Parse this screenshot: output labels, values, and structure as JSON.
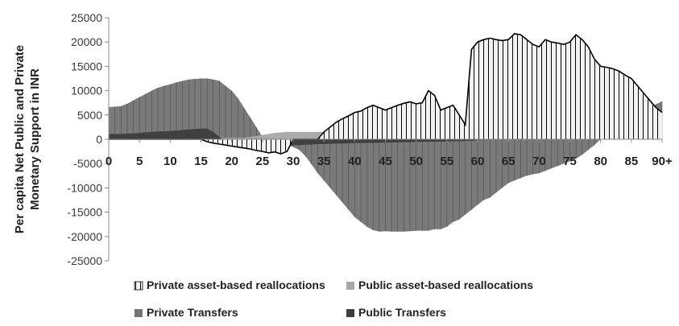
{
  "chart_data": {
    "type": "area",
    "title": "",
    "ylabel": "Per  capita Net Public and Private Monetary Support in INR",
    "xlabel": "",
    "ylim": [
      -25000,
      25000
    ],
    "yticks": [
      25000,
      20000,
      15000,
      10000,
      5000,
      0,
      -5000,
      -10000,
      -15000,
      -20000,
      -25000
    ],
    "x_tick_labels": [
      "0",
      "5",
      "10",
      "15",
      "20",
      "25",
      "30",
      "35",
      "40",
      "45",
      "50",
      "55",
      "60",
      "65",
      "70",
      "75",
      "80",
      "85",
      "90+"
    ],
    "grid": false,
    "legend_position": "bottom",
    "x": [
      0,
      1,
      2,
      3,
      4,
      5,
      6,
      7,
      8,
      9,
      10,
      11,
      12,
      13,
      14,
      15,
      16,
      17,
      18,
      19,
      20,
      21,
      22,
      23,
      24,
      25,
      26,
      27,
      28,
      29,
      30,
      31,
      32,
      33,
      34,
      35,
      36,
      37,
      38,
      39,
      40,
      41,
      42,
      43,
      44,
      45,
      46,
      47,
      48,
      49,
      50,
      51,
      52,
      53,
      54,
      55,
      56,
      57,
      58,
      59,
      60,
      61,
      62,
      63,
      64,
      65,
      66,
      67,
      68,
      69,
      70,
      71,
      72,
      73,
      74,
      75,
      76,
      77,
      78,
      79,
      80,
      81,
      82,
      83,
      84,
      85,
      86,
      87,
      88,
      89,
      90
    ],
    "series": [
      {
        "name": "Private asset-based  reallocations",
        "color": "#f2f2f2",
        "values": [
          0,
          0,
          0,
          0,
          0,
          0,
          0,
          0,
          0,
          0,
          0,
          0,
          0,
          0,
          0,
          0,
          -500,
          -800,
          -1000,
          -1200,
          -1400,
          -1600,
          -1800,
          -2000,
          -2300,
          -2500,
          -2800,
          -2600,
          -3000,
          -2500,
          0,
          0,
          0,
          0,
          0,
          1500,
          2500,
          3500,
          4200,
          4800,
          5500,
          5800,
          6500,
          7000,
          6500,
          6000,
          6500,
          7000,
          7400,
          7700,
          7300,
          7500,
          10000,
          9000,
          6000,
          6500,
          7000,
          5000,
          3000,
          18500,
          20000,
          20500,
          20800,
          20500,
          20300,
          20500,
          21700,
          21500,
          20500,
          19500,
          19000,
          20500,
          20000,
          19800,
          19500,
          20000,
          21500,
          20500,
          19000,
          16500,
          15000,
          14800,
          14500,
          14000,
          13200,
          12500,
          11000,
          9500,
          8000,
          6500,
          5500
        ]
      },
      {
        "name": "Public asset-based  reallocations",
        "color": "#a6a6a6",
        "values": [
          300,
          300,
          300,
          300,
          300,
          300,
          300,
          300,
          300,
          300,
          300,
          300,
          300,
          300,
          300,
          300,
          300,
          300,
          300,
          300,
          300,
          300,
          300,
          500,
          700,
          900,
          1100,
          1300,
          1400,
          1500,
          1500,
          1500,
          1500,
          1500,
          1500,
          1500,
          1500,
          1500,
          1500,
          1500,
          1500,
          1500,
          1500,
          1500,
          1500,
          1500,
          1500,
          1500,
          1500,
          1500,
          1500,
          1500,
          1500,
          1500,
          1500,
          1500,
          1500,
          1500,
          1500,
          1600,
          1700,
          1700,
          1700,
          1700,
          1700,
          1700,
          1700,
          1700,
          1700,
          1700,
          1700,
          1700,
          1700,
          1700,
          1700,
          1800,
          1800,
          1800,
          1800,
          1800,
          1800,
          1800,
          1800,
          1800,
          1800,
          1800,
          1800,
          1800,
          1800,
          1800,
          1800
        ]
      },
      {
        "name": "Private Transfers",
        "color": "#737373",
        "values": [
          6600,
          6700,
          6800,
          7300,
          8000,
          8700,
          9300,
          10000,
          10600,
          11000,
          11300,
          11700,
          12000,
          12300,
          12400,
          12500,
          12500,
          12300,
          12000,
          11000,
          10000,
          8500,
          6500,
          4500,
          2500,
          500,
          -300,
          -600,
          -900,
          -1200,
          -1600,
          -2200,
          -3500,
          -5200,
          -7000,
          -8500,
          -10000,
          -11500,
          -13000,
          -14500,
          -16000,
          -17000,
          -18000,
          -18700,
          -19000,
          -18900,
          -19000,
          -19000,
          -19000,
          -18900,
          -18800,
          -18800,
          -18800,
          -18500,
          -18500,
          -18000,
          -17000,
          -16500,
          -15500,
          -14500,
          -13500,
          -12500,
          -12000,
          -11000,
          -10000,
          -9000,
          -8500,
          -8000,
          -7500,
          -7200,
          -7000,
          -6500,
          -6000,
          -5500,
          -5000,
          -4500,
          -4000,
          -3200,
          -2200,
          -1200,
          0,
          800,
          1600,
          2400,
          3300,
          4200,
          5000,
          5800,
          6600,
          7200,
          7800
        ]
      },
      {
        "name": "Public Transfers",
        "color": "#3d3d3d",
        "values": [
          1100,
          1100,
          1100,
          1200,
          1200,
          1300,
          1400,
          1500,
          1600,
          1600,
          1700,
          1800,
          1900,
          2000,
          2100,
          2200,
          2200,
          1500,
          500,
          -500,
          -700,
          -700,
          -700,
          -700,
          -800,
          -800,
          -900,
          -1000,
          -1100,
          -1200,
          -1200,
          -1200,
          -1100,
          -1100,
          -1000,
          -1000,
          -950,
          -900,
          -900,
          -850,
          -800,
          -800,
          -750,
          -750,
          -700,
          -700,
          -650,
          -650,
          -600,
          -600,
          -550,
          -550,
          -500,
          -500,
          -500,
          -450,
          -400,
          -400,
          -350,
          -300,
          -200,
          -100,
          0,
          100,
          200,
          300,
          400,
          500,
          600,
          700,
          800,
          900,
          1000,
          1100,
          1000,
          900,
          800,
          700,
          600,
          500,
          400,
          500,
          700,
          900,
          1200,
          1500,
          1800,
          2200,
          2600,
          3200,
          3800
        ]
      }
    ]
  }
}
